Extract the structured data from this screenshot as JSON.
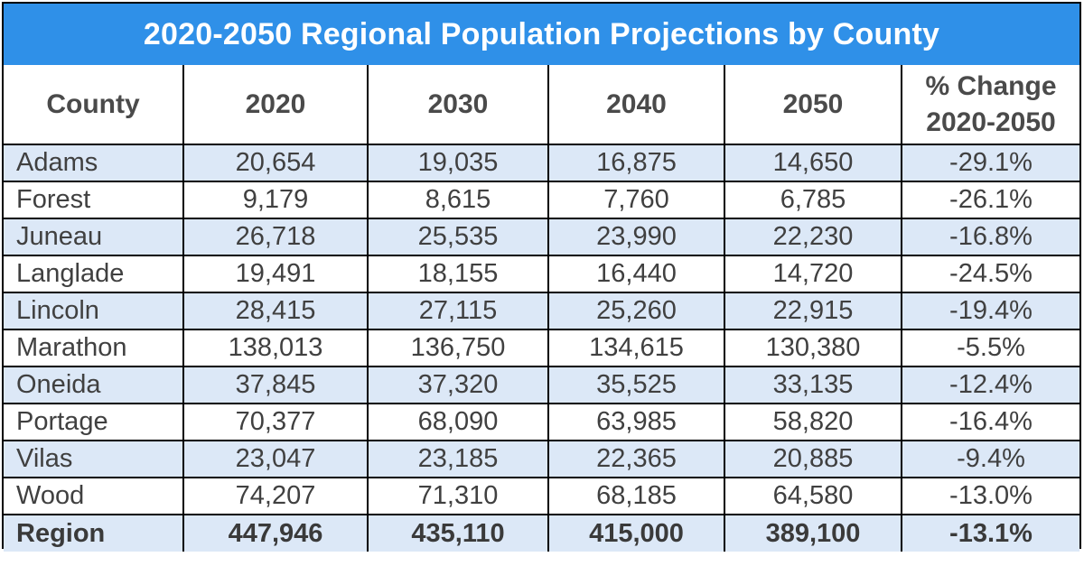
{
  "title": "2020-2050 Regional Population Projections by County",
  "colors": {
    "title_bg": "#2f90e8",
    "row_shade": "#dce8f7",
    "text": "#404040"
  },
  "chart_data": {
    "type": "table",
    "title": "2020-2050 Regional Population Projections by County",
    "columns": [
      "County",
      "2020",
      "2030",
      "2040",
      "2050",
      "% Change 2020-2050"
    ],
    "column_header_lines": [
      [
        "County"
      ],
      [
        "2020"
      ],
      [
        "2030"
      ],
      [
        "2040"
      ],
      [
        "2050"
      ],
      [
        "% Change",
        "2020-2050"
      ]
    ],
    "rows": [
      [
        "Adams",
        "20,654",
        "19,035",
        "16,875",
        "14,650",
        "-29.1%"
      ],
      [
        "Forest",
        "9,179",
        "8,615",
        "7,760",
        "6,785",
        "-26.1%"
      ],
      [
        "Juneau",
        "26,718",
        "25,535",
        "23,990",
        "22,230",
        "-16.8%"
      ],
      [
        "Langlade",
        "19,491",
        "18,155",
        "16,440",
        "14,720",
        "-24.5%"
      ],
      [
        "Lincoln",
        "28,415",
        "27,115",
        "25,260",
        "22,915",
        "-19.4%"
      ],
      [
        "Marathon",
        "138,013",
        "136,750",
        "134,615",
        "130,380",
        "-5.5%"
      ],
      [
        "Oneida",
        "37,845",
        "37,320",
        "35,525",
        "33,135",
        "-12.4%"
      ],
      [
        "Portage",
        "70,377",
        "68,090",
        "63,985",
        "58,820",
        "-16.4%"
      ],
      [
        "Vilas",
        "23,047",
        "23,185",
        "22,365",
        "20,885",
        "-9.4%"
      ],
      [
        "Wood",
        "74,207",
        "71,310",
        "68,185",
        "64,580",
        "-13.0%"
      ]
    ],
    "total_row": [
      "Region",
      "447,946",
      "435,110",
      "415,000",
      "389,100",
      "-13.1%"
    ]
  }
}
